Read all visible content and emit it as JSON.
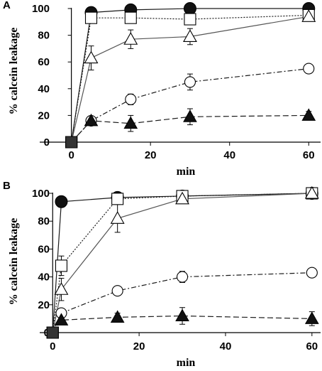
{
  "chart_data": [
    {
      "panel": "A",
      "type": "line",
      "xlabel": "min",
      "ylabel": "% calcein leakage",
      "xlim": [
        -8,
        63
      ],
      "ylim": [
        0,
        100
      ],
      "x_ticks": [
        0,
        20,
        40,
        60
      ],
      "y_ticks": [
        0,
        20,
        40,
        60,
        80,
        100
      ],
      "series": [
        {
          "marker": "filled-circle",
          "line": "solid",
          "x": [
            0,
            5,
            15,
            30,
            60
          ],
          "y": [
            0,
            97,
            99,
            100,
            100
          ],
          "err": [
            0,
            1,
            1,
            1,
            1
          ]
        },
        {
          "marker": "open-square",
          "line": "dotted",
          "x": [
            0,
            5,
            15,
            30,
            60
          ],
          "y": [
            0,
            93,
            93,
            92,
            95
          ],
          "err": [
            0,
            2,
            2,
            3,
            2
          ]
        },
        {
          "marker": "open-triangle",
          "line": "solid-gray",
          "x": [
            0,
            5,
            15,
            30,
            60
          ],
          "y": [
            0,
            63,
            77,
            79,
            94
          ],
          "err": [
            0,
            9,
            7,
            6,
            3
          ]
        },
        {
          "marker": "open-circle",
          "line": "dash-dot",
          "x": [
            0,
            5,
            15,
            30,
            60
          ],
          "y": [
            0,
            16,
            32,
            45,
            55
          ],
          "err": [
            0,
            2,
            4,
            6,
            3
          ]
        },
        {
          "marker": "filled-triangle",
          "line": "dashed",
          "x": [
            0,
            5,
            15,
            30,
            60
          ],
          "y": [
            0,
            16,
            14,
            19,
            20
          ],
          "err": [
            0,
            2,
            6,
            6,
            3
          ]
        }
      ]
    },
    {
      "panel": "B",
      "type": "line",
      "xlabel": "min",
      "ylabel": "% calcein leakage",
      "xlim": [
        -3,
        62
      ],
      "ylim": [
        0,
        100
      ],
      "x_ticks": [
        0,
        20,
        40,
        60
      ],
      "y_ticks": [
        0,
        20,
        40,
        60,
        80,
        100
      ],
      "series": [
        {
          "marker": "filled-circle",
          "line": "solid",
          "x": [
            0,
            2,
            15,
            30,
            60
          ],
          "y": [
            0,
            94,
            97,
            98,
            100
          ],
          "err": [
            0,
            1,
            1,
            1,
            1
          ]
        },
        {
          "marker": "open-square",
          "line": "dotted",
          "x": [
            0,
            2,
            15,
            30,
            60
          ],
          "y": [
            0,
            48,
            96,
            98,
            100
          ],
          "err": [
            0,
            7,
            3,
            2,
            1
          ]
        },
        {
          "marker": "open-triangle",
          "line": "solid-gray",
          "x": [
            0,
            2,
            15,
            30,
            60
          ],
          "y": [
            0,
            31,
            82,
            96,
            100
          ],
          "err": [
            0,
            8,
            10,
            3,
            1
          ]
        },
        {
          "marker": "open-circle",
          "line": "dash-dot",
          "x": [
            0,
            2,
            15,
            30,
            60
          ],
          "y": [
            0,
            14,
            30,
            40,
            43
          ],
          "err": [
            0,
            3,
            2,
            4,
            3
          ]
        },
        {
          "marker": "filled-triangle",
          "line": "dashed",
          "x": [
            0,
            2,
            15,
            30,
            60
          ],
          "y": [
            0,
            9,
            11,
            12,
            10
          ],
          "err": [
            0,
            2,
            3,
            6,
            5
          ]
        }
      ]
    }
  ]
}
